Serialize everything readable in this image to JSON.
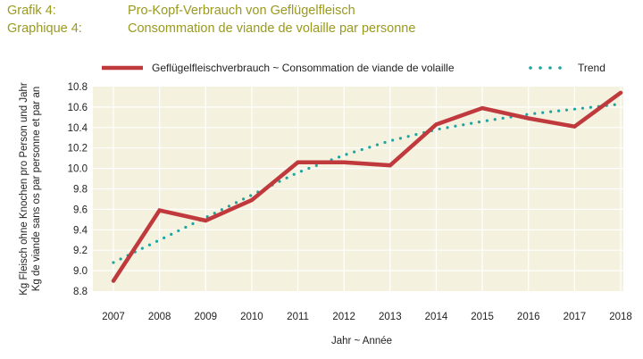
{
  "header": {
    "label_de": "Grafik 4:",
    "title_de": "Pro-Kopf-Verbrauch von Geflügelfleisch",
    "label_fr": "Graphique 4:",
    "title_fr": "Consommation de viande de volaille par personne"
  },
  "colors": {
    "title": "#9a9a1e",
    "series": "#c0393d",
    "trend": "#1fa5a0",
    "plot_bg": "#f4f1df",
    "grid": "#ffffff"
  },
  "chart_data": {
    "type": "line",
    "legend_position": "top",
    "grid": true,
    "x": [
      2007,
      2008,
      2009,
      2010,
      2011,
      2012,
      2013,
      2014,
      2015,
      2016,
      2017,
      2018
    ],
    "xlabel": "Jahr ~ Année",
    "ylabel_de": "Kg Fleisch ohne Knochen pro Person und Jahr",
    "ylabel_fr": "Kg de viande sans os par personne et par an",
    "ylim": [
      8.8,
      10.8
    ],
    "yticks": [
      "8.8",
      "9.0",
      "9.2",
      "9.4",
      "9.6",
      "9.8",
      "10.0",
      "10.2",
      "10.4",
      "10.6",
      "10.8"
    ],
    "series": [
      {
        "name": "Geflügelfleischverbrauch ~ Consommation de viande de volaille",
        "style": "solid",
        "values": [
          8.9,
          9.59,
          9.49,
          9.69,
          10.06,
          10.06,
          10.03,
          10.43,
          10.59,
          10.49,
          10.41,
          10.74
        ]
      },
      {
        "name": "Trend",
        "style": "dotted",
        "values": [
          9.08,
          9.3,
          9.52,
          9.74,
          9.96,
          10.13,
          10.27,
          10.38,
          10.46,
          10.53,
          10.58,
          10.63
        ]
      }
    ]
  }
}
